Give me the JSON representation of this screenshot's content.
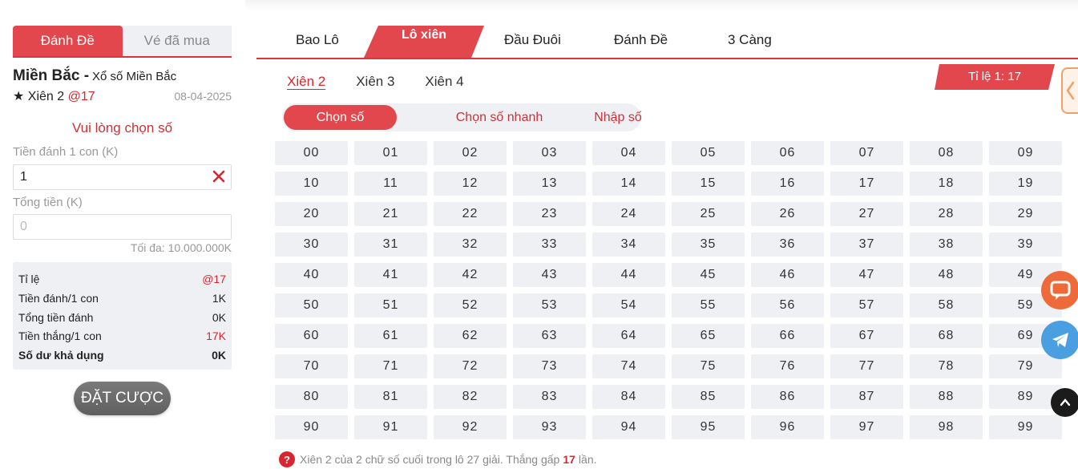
{
  "left": {
    "tabs": [
      "Đánh Đề",
      "Vé đã mua"
    ],
    "region": "Miền Bắc -",
    "region_sub": "Xổ số Miền Bắc",
    "bet_type": "★ Xiên 2",
    "bet_odds": "@17",
    "date": "08-04-2025",
    "prompt": "Vui lòng chọn số",
    "stake_label": "Tiền đánh 1 con (K)",
    "stake_value": "1",
    "total_label": "Tổng tiền (K)",
    "total_placeholder": "0",
    "max_text": "Tối đa: 10.000.000K",
    "summary": [
      {
        "label": "Tỉ lệ",
        "value": "@17",
        "red": true
      },
      {
        "label": "Tiền đánh/1 con",
        "value": "1K",
        "red": false
      },
      {
        "label": "Tổng tiền đánh",
        "value": "0K",
        "red": false
      },
      {
        "label": "Tiền thắng/1 con",
        "value": "17K",
        "red": true
      },
      {
        "label": "Số dư khả dụng",
        "value": "0K",
        "red": false,
        "bold": true
      }
    ],
    "bet_button": "ĐẶT CƯỢC"
  },
  "main": {
    "game_tabs": [
      "Bao Lô",
      "Lô xiên",
      "Đầu Đuôi",
      "Đánh Đề",
      "3 Càng"
    ],
    "active_game_tab": "Lô xiên",
    "sub_tabs": [
      "Xiên 2",
      "Xiên 3",
      "Xiên 4"
    ],
    "ratio": "Tỉ lệ 1: 17",
    "modes": [
      "Chọn số",
      "Chọn số nhanh",
      "Nhập số"
    ],
    "numbers": [
      "00",
      "01",
      "02",
      "03",
      "04",
      "05",
      "06",
      "07",
      "08",
      "09",
      "10",
      "11",
      "12",
      "13",
      "14",
      "15",
      "16",
      "17",
      "18",
      "19",
      "20",
      "21",
      "22",
      "23",
      "24",
      "25",
      "26",
      "27",
      "28",
      "29",
      "30",
      "31",
      "32",
      "33",
      "34",
      "35",
      "36",
      "37",
      "38",
      "39",
      "40",
      "41",
      "42",
      "43",
      "44",
      "45",
      "46",
      "47",
      "48",
      "49",
      "50",
      "51",
      "52",
      "53",
      "54",
      "55",
      "56",
      "57",
      "58",
      "59",
      "60",
      "61",
      "62",
      "63",
      "64",
      "65",
      "66",
      "67",
      "68",
      "69",
      "70",
      "71",
      "72",
      "73",
      "74",
      "75",
      "76",
      "77",
      "78",
      "79",
      "80",
      "81",
      "82",
      "83",
      "84",
      "85",
      "86",
      "87",
      "88",
      "89",
      "90",
      "91",
      "92",
      "93",
      "94",
      "95",
      "96",
      "97",
      "98",
      "99"
    ],
    "note_before": "Xiên 2 của 2 chữ số cuối trong lô 27 giải. Thắng gấp",
    "note_num": "17",
    "note_after": "lần."
  },
  "colors": {
    "accent": "#e2474e",
    "accent_dark": "#d6262e",
    "chip_bg": "#eef0f3"
  },
  "icons": [
    "clear-x-icon",
    "question-icon",
    "chevron-left-icon",
    "chat-icon",
    "telegram-icon",
    "arrow-up-icon"
  ]
}
